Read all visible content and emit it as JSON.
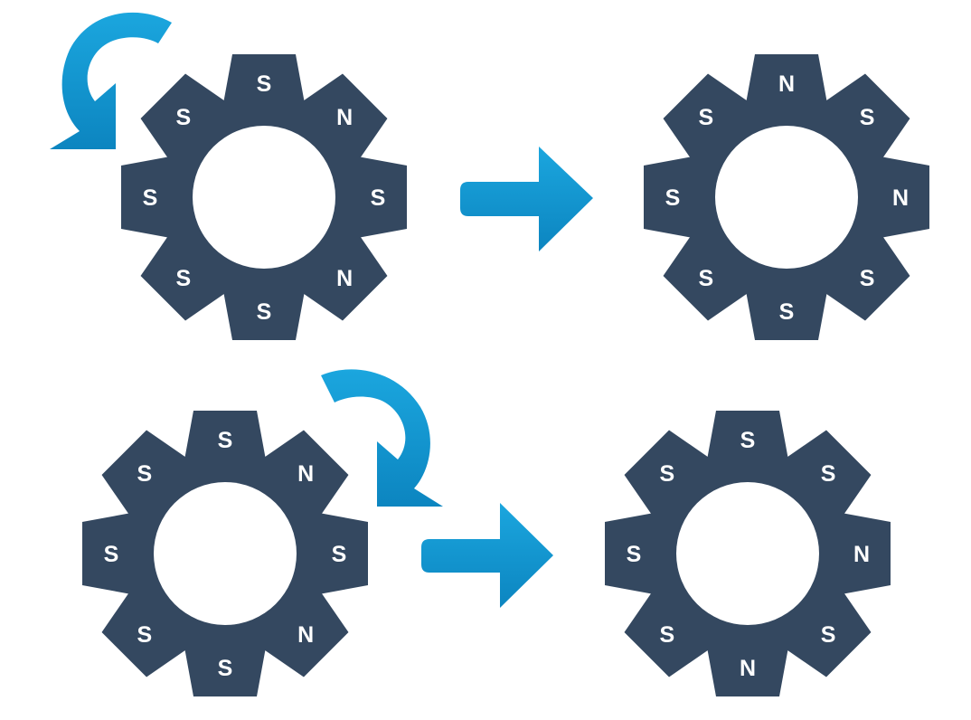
{
  "colors": {
    "gear": "#344860",
    "arrow_light": "#1ba6de",
    "arrow_dark": "#0c85c0",
    "background": "#ffffff"
  },
  "gears": [
    {
      "id": "top-left",
      "teeth": [
        "S",
        "N",
        "S",
        "N",
        "S",
        "S",
        "S",
        "S"
      ]
    },
    {
      "id": "top-right",
      "teeth": [
        "N",
        "S",
        "N",
        "S",
        "S",
        "S",
        "S",
        "S"
      ]
    },
    {
      "id": "bottom-left",
      "teeth": [
        "S",
        "N",
        "S",
        "N",
        "S",
        "S",
        "S",
        "S"
      ]
    },
    {
      "id": "bottom-right",
      "teeth": [
        "S",
        "S",
        "N",
        "S",
        "N",
        "S",
        "S",
        "S"
      ]
    }
  ],
  "rotation_arrows": [
    {
      "id": "top-rotation",
      "direction": "counterclockwise",
      "icon": "rotate-counterclockwise-icon"
    },
    {
      "id": "bottom-rotation",
      "direction": "clockwise",
      "icon": "rotate-clockwise-icon"
    }
  ],
  "transition_arrows": [
    {
      "id": "top-transition",
      "icon": "arrow-right-icon"
    },
    {
      "id": "bottom-transition",
      "icon": "arrow-right-icon"
    }
  ]
}
